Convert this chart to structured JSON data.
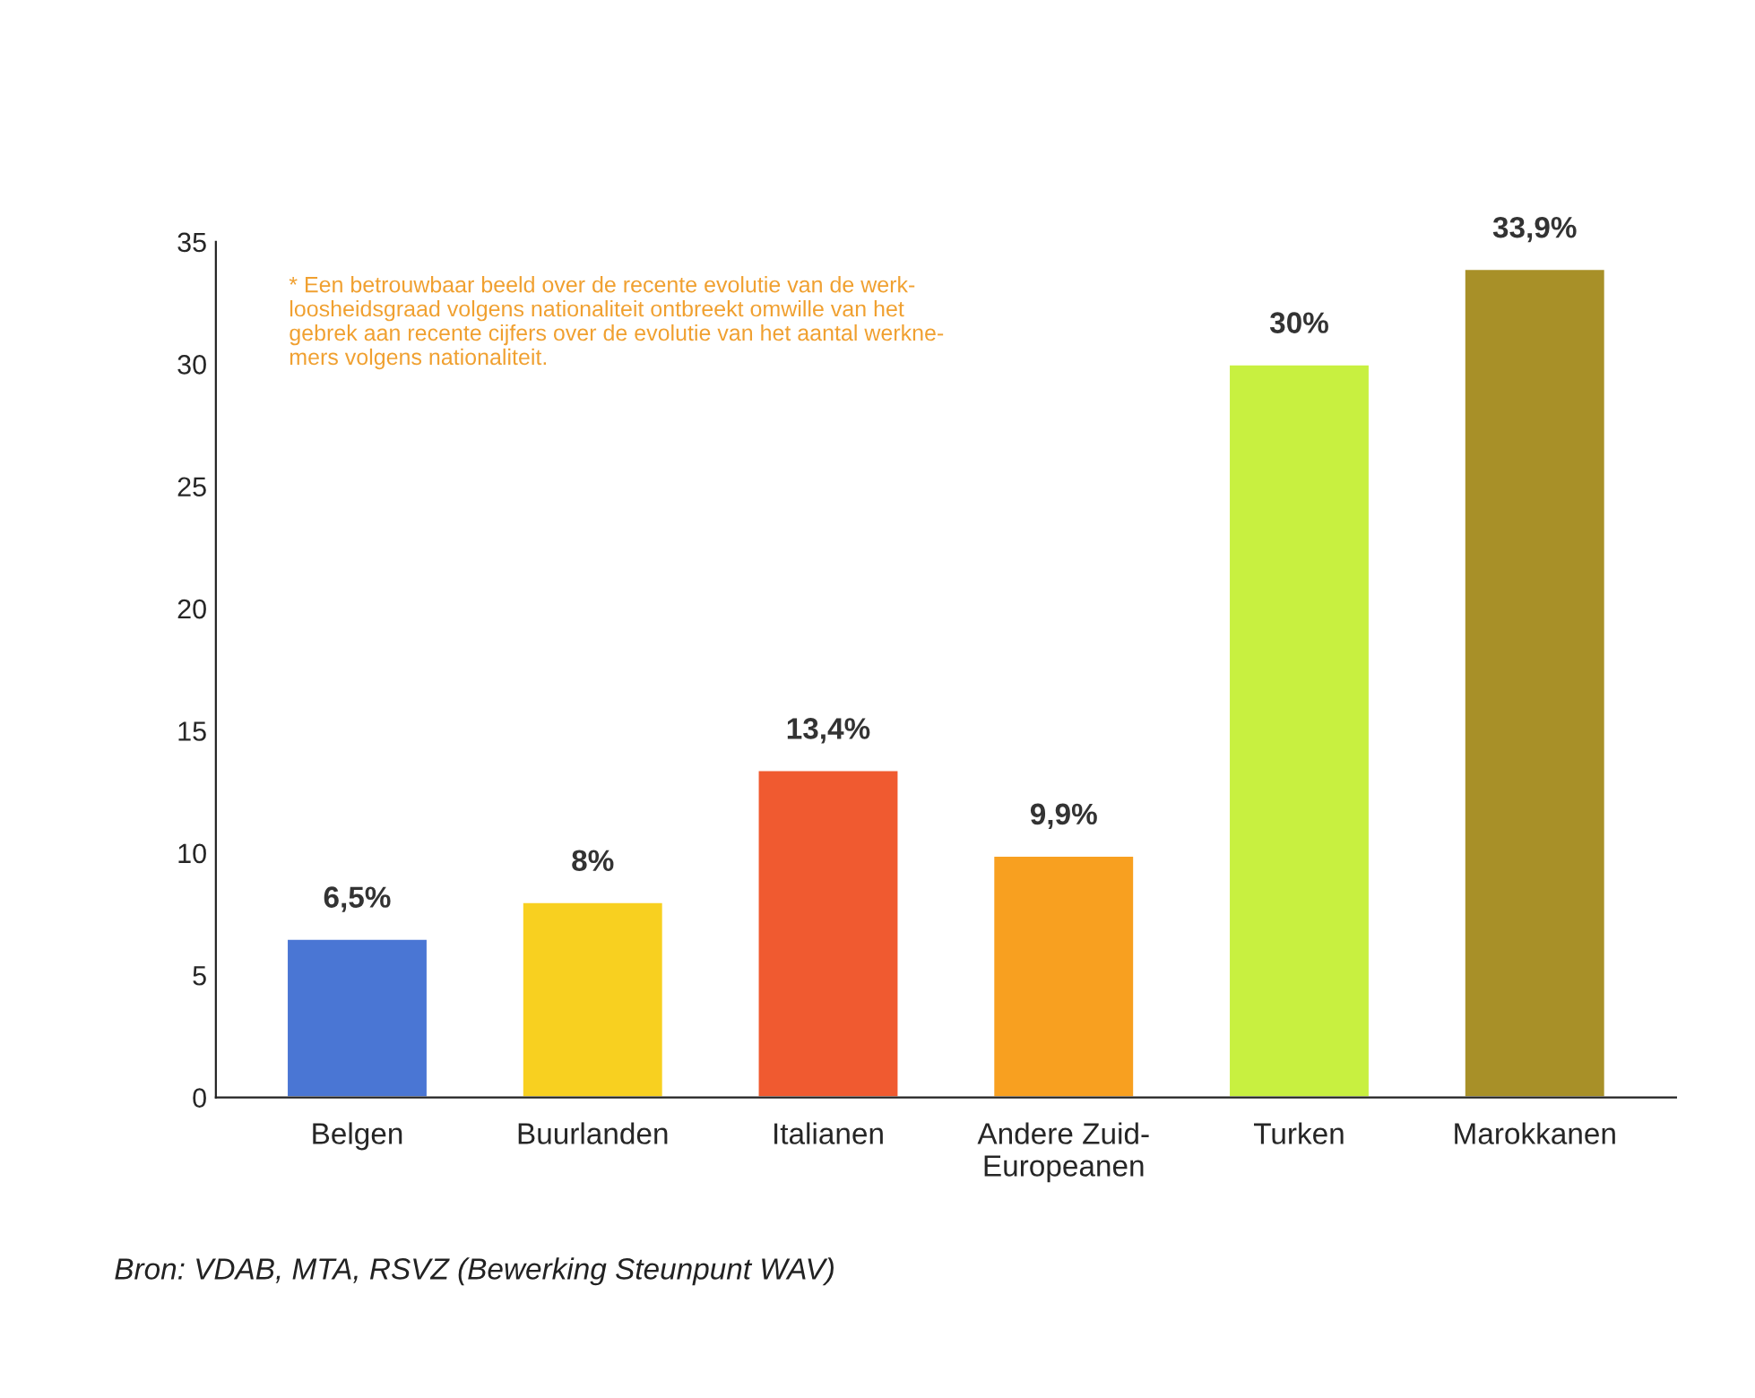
{
  "chart_data": {
    "type": "bar",
    "categories": [
      "Belgen",
      "Buurlanden",
      "Italianen",
      "Andere Zuid-\nEuropeanen",
      "Turken",
      "Marokkanen"
    ],
    "values": [
      6.5,
      8,
      13.4,
      9.9,
      30,
      33.9
    ],
    "value_labels": [
      "6,5%",
      "8%",
      "13,4%",
      "9,9%",
      "30%",
      "33,9%"
    ],
    "colors": [
      "#4a76d4",
      "#f8d020",
      "#f05a30",
      "#f8a020",
      "#c8f040",
      "#a89028"
    ],
    "ylim": [
      0,
      35
    ],
    "yticks": [
      0,
      5,
      10,
      15,
      20,
      25,
      30,
      35
    ],
    "grid": false,
    "annotations": [
      "* Een betrouwbaar beeld over de recente evolutie van de werk-\nloosheidsgraad volgens nationaliteit ontbreekt omwille van het\ngebrek aan recente cijfers over de evolutie van het aantal werkne-\nmers volgens nationaliteit.",
      "Bron: VDAB, MTA, RSVZ (Bewerking Steunpunt WAV)"
    ]
  }
}
